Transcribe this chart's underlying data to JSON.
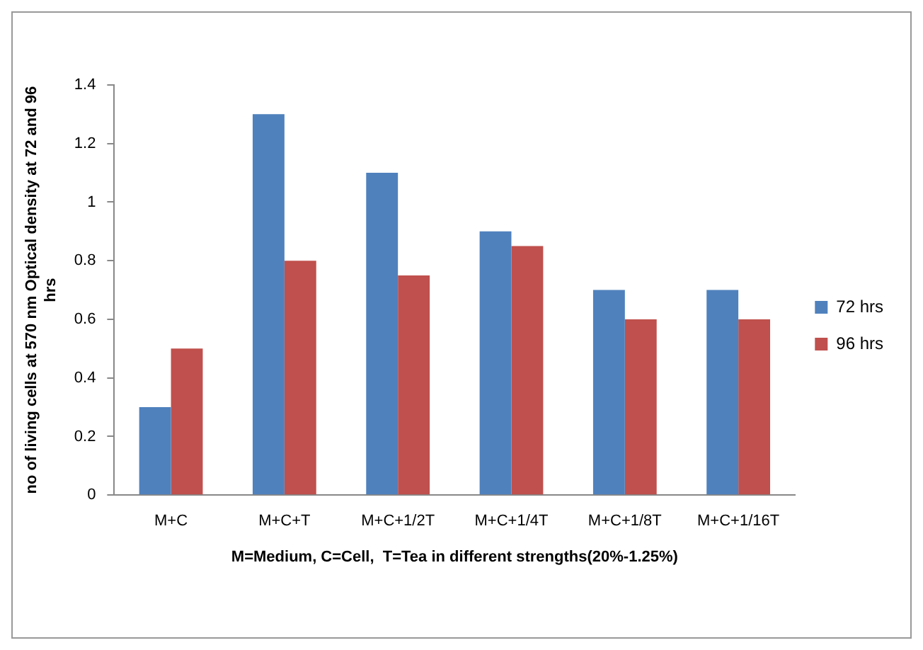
{
  "chart_data": {
    "type": "bar",
    "xlabel": "M=Medium, C=Cell,  T=Tea in different strengths(20%-1.25%)",
    "ylabel": "no of living cells at 570 nm Optical density at 72 and 96 hrs",
    "categories": [
      "M+C",
      "M+C+T",
      "M+C+1/2T",
      "M+C+1/4T",
      "M+C+1/8T",
      "M+C+1/16T"
    ],
    "series": [
      {
        "name": "72 hrs",
        "color": "#4f81bd",
        "values": [
          0.3,
          1.3,
          1.1,
          0.9,
          0.7,
          0.7
        ]
      },
      {
        "name": "96 hrs",
        "color": "#c0504d",
        "values": [
          0.5,
          0.8,
          0.75,
          0.85,
          0.6,
          0.6
        ]
      }
    ],
    "ylim": [
      0,
      1.4
    ],
    "yticks": [
      0,
      0.2,
      0.4,
      0.6,
      0.8,
      1,
      1.2,
      1.4
    ],
    "grid": false,
    "legend": "right"
  }
}
